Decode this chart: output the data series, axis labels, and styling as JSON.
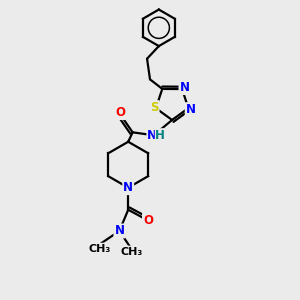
{
  "bg_color": "#ebebeb",
  "bond_color": "#000000",
  "atom_colors": {
    "N": "#0000ff",
    "O": "#ff0000",
    "S": "#cccc00",
    "H": "#008080",
    "C": "#000000"
  },
  "bond_width": 1.6,
  "font_size": 8.5
}
